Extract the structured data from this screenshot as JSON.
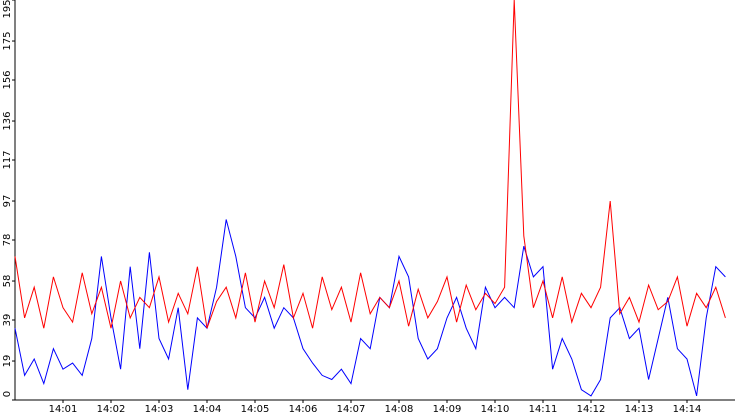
{
  "chart_data": {
    "type": "line",
    "x": [
      840,
      840.2,
      840.4,
      840.6,
      840.8,
      841,
      841.2,
      841.4,
      841.6,
      841.8,
      842,
      842.2,
      842.4,
      842.6,
      842.8,
      843,
      843.2,
      843.4,
      843.6,
      843.8,
      844,
      844.2,
      844.4,
      844.6,
      844.8,
      845,
      845.2,
      845.4,
      845.6,
      845.8,
      846,
      846.2,
      846.4,
      846.6,
      846.8,
      847,
      847.2,
      847.4,
      847.6,
      847.8,
      848,
      848.2,
      848.4,
      848.6,
      848.8,
      849,
      849.2,
      849.4,
      849.6,
      849.8,
      850,
      850.2,
      850.4,
      850.6,
      850.8,
      851,
      851.2,
      851.4,
      851.6,
      851.8,
      852,
      852.2,
      852.4,
      852.6,
      852.8,
      853,
      853.2,
      853.4,
      853.6,
      853.8,
      854,
      854.2,
      854.4,
      854.6,
      854.8
    ],
    "series": [
      {
        "color": "#0000ff",
        "values": [
          35,
          12,
          20,
          8,
          25,
          15,
          18,
          12,
          30,
          70,
          40,
          15,
          65,
          25,
          72,
          30,
          20,
          45,
          5,
          40,
          35,
          55,
          88,
          70,
          45,
          40,
          50,
          35,
          45,
          40,
          25,
          18,
          12,
          10,
          15,
          8,
          30,
          25,
          50,
          45,
          70,
          60,
          30,
          20,
          25,
          40,
          50,
          35,
          25,
          55,
          45,
          50,
          45,
          75,
          60,
          65,
          15,
          30,
          20,
          5,
          2,
          10,
          40,
          45,
          30,
          35,
          10,
          30,
          50,
          25,
          20,
          2,
          40,
          65,
          60
        ]
      },
      {
        "color": "#ff0000",
        "values": [
          70,
          40,
          55,
          35,
          60,
          45,
          38,
          62,
          42,
          55,
          35,
          58,
          40,
          50,
          45,
          60,
          38,
          52,
          42,
          65,
          35,
          48,
          55,
          40,
          62,
          38,
          58,
          45,
          66,
          40,
          52,
          35,
          60,
          44,
          55,
          38,
          62,
          42,
          50,
          45,
          58,
          36,
          54,
          40,
          48,
          60,
          38,
          56,
          44,
          52,
          47,
          55,
          195,
          80,
          45,
          58,
          40,
          60,
          38,
          52,
          45,
          55,
          97,
          42,
          50,
          38,
          56,
          44,
          48,
          60,
          36,
          52,
          45,
          55,
          40
        ]
      }
    ],
    "xlim": [
      840,
      855
    ],
    "xticks": [
      {
        "value": 841,
        "label": "14:01"
      },
      {
        "value": 842,
        "label": "14:02"
      },
      {
        "value": 843,
        "label": "14:03"
      },
      {
        "value": 844,
        "label": "14:04"
      },
      {
        "value": 845,
        "label": "14:05"
      },
      {
        "value": 846,
        "label": "14:06"
      },
      {
        "value": 847,
        "label": "14:07"
      },
      {
        "value": 848,
        "label": "14:08"
      },
      {
        "value": 849,
        "label": "14:09"
      },
      {
        "value": 850,
        "label": "14:10"
      },
      {
        "value": 851,
        "label": "14:11"
      },
      {
        "value": 852,
        "label": "14:12"
      },
      {
        "value": 853,
        "label": "14:13"
      },
      {
        "value": 854,
        "label": "14:14"
      }
    ],
    "ylim": [
      0,
      195
    ],
    "yticks": [
      0,
      19,
      39,
      58,
      78,
      97,
      117,
      136,
      156,
      175,
      195
    ]
  }
}
